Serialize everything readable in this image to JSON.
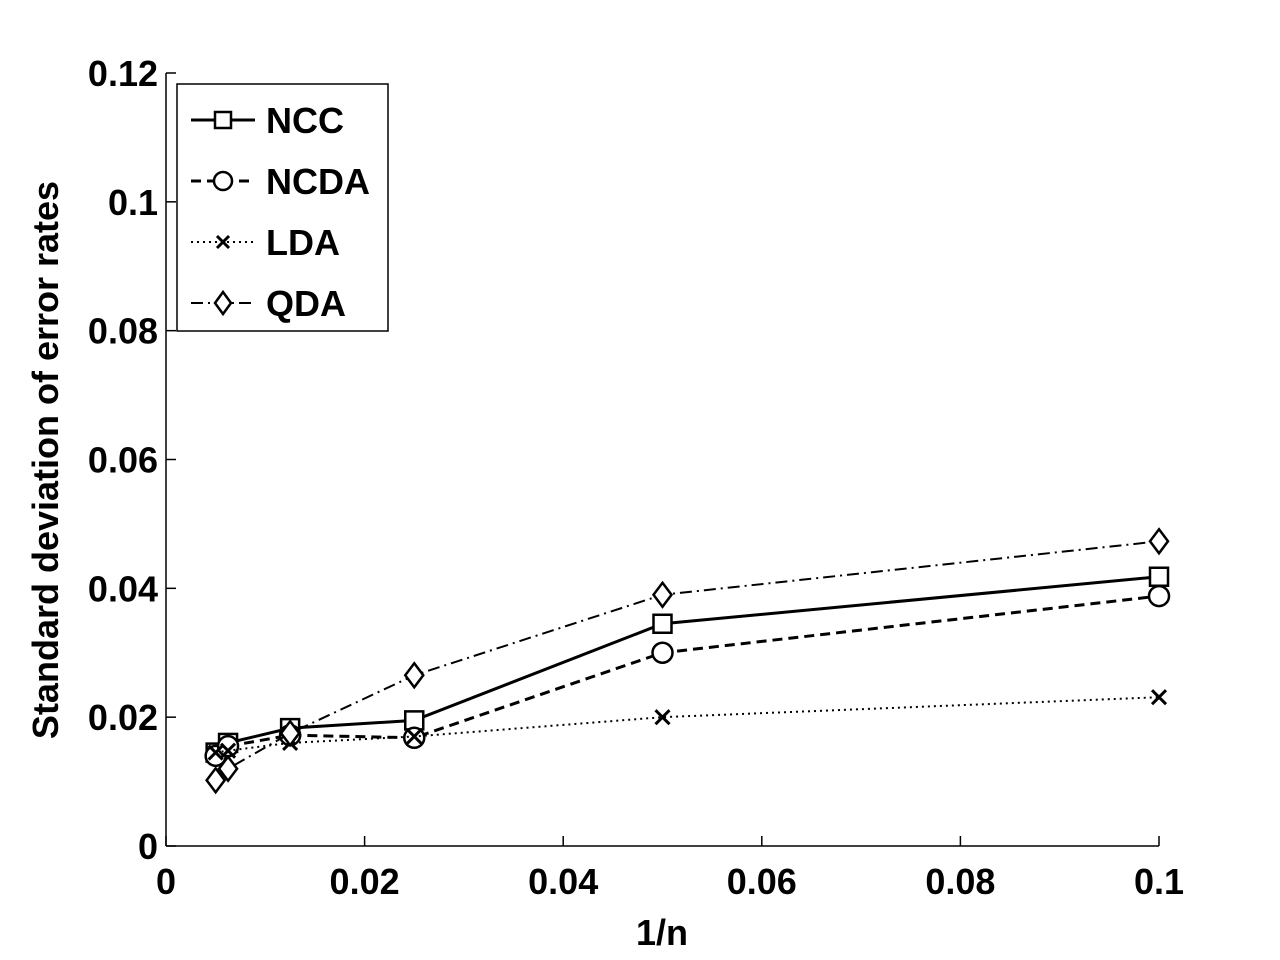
{
  "chart_data": {
    "type": "line",
    "title": "",
    "xlabel": "1/n",
    "ylabel": "Standard deviation of  error rates",
    "xlim": [
      0,
      0.1
    ],
    "ylim": [
      0,
      0.12
    ],
    "xticks": [
      0,
      0.02,
      0.04,
      0.06,
      0.08,
      0.1
    ],
    "xtick_labels": [
      "0",
      "0.02",
      "0.04",
      "0.06",
      "0.08",
      "0.1"
    ],
    "yticks": [
      0,
      0.02,
      0.04,
      0.06,
      0.08,
      0.1,
      0.12
    ],
    "ytick_labels": [
      "0",
      "0.02",
      "0.04",
      "0.06",
      "0.08",
      "0.1",
      "0.12"
    ],
    "grid": false,
    "legend_position": "top-left",
    "x": [
      0.005,
      0.00625,
      0.0125,
      0.025,
      0.05,
      0.1
    ],
    "series": [
      {
        "name": "NCC",
        "marker": "square",
        "line_style": "solid",
        "values": [
          0.0145,
          0.016,
          0.0183,
          0.0195,
          0.0345,
          0.0418
        ]
      },
      {
        "name": "NCDA",
        "marker": "circle",
        "line_style": "dashed",
        "values": [
          0.014,
          0.0155,
          0.0172,
          0.0168,
          0.03,
          0.0388
        ]
      },
      {
        "name": "LDA",
        "marker": "x",
        "line_style": "dotted",
        "values": [
          0.0145,
          0.0148,
          0.016,
          0.017,
          0.02,
          0.0231
        ]
      },
      {
        "name": "QDA",
        "marker": "diamond",
        "line_style": "dashdot",
        "values": [
          0.0102,
          0.012,
          0.0175,
          0.0265,
          0.039,
          0.0473
        ]
      }
    ]
  }
}
